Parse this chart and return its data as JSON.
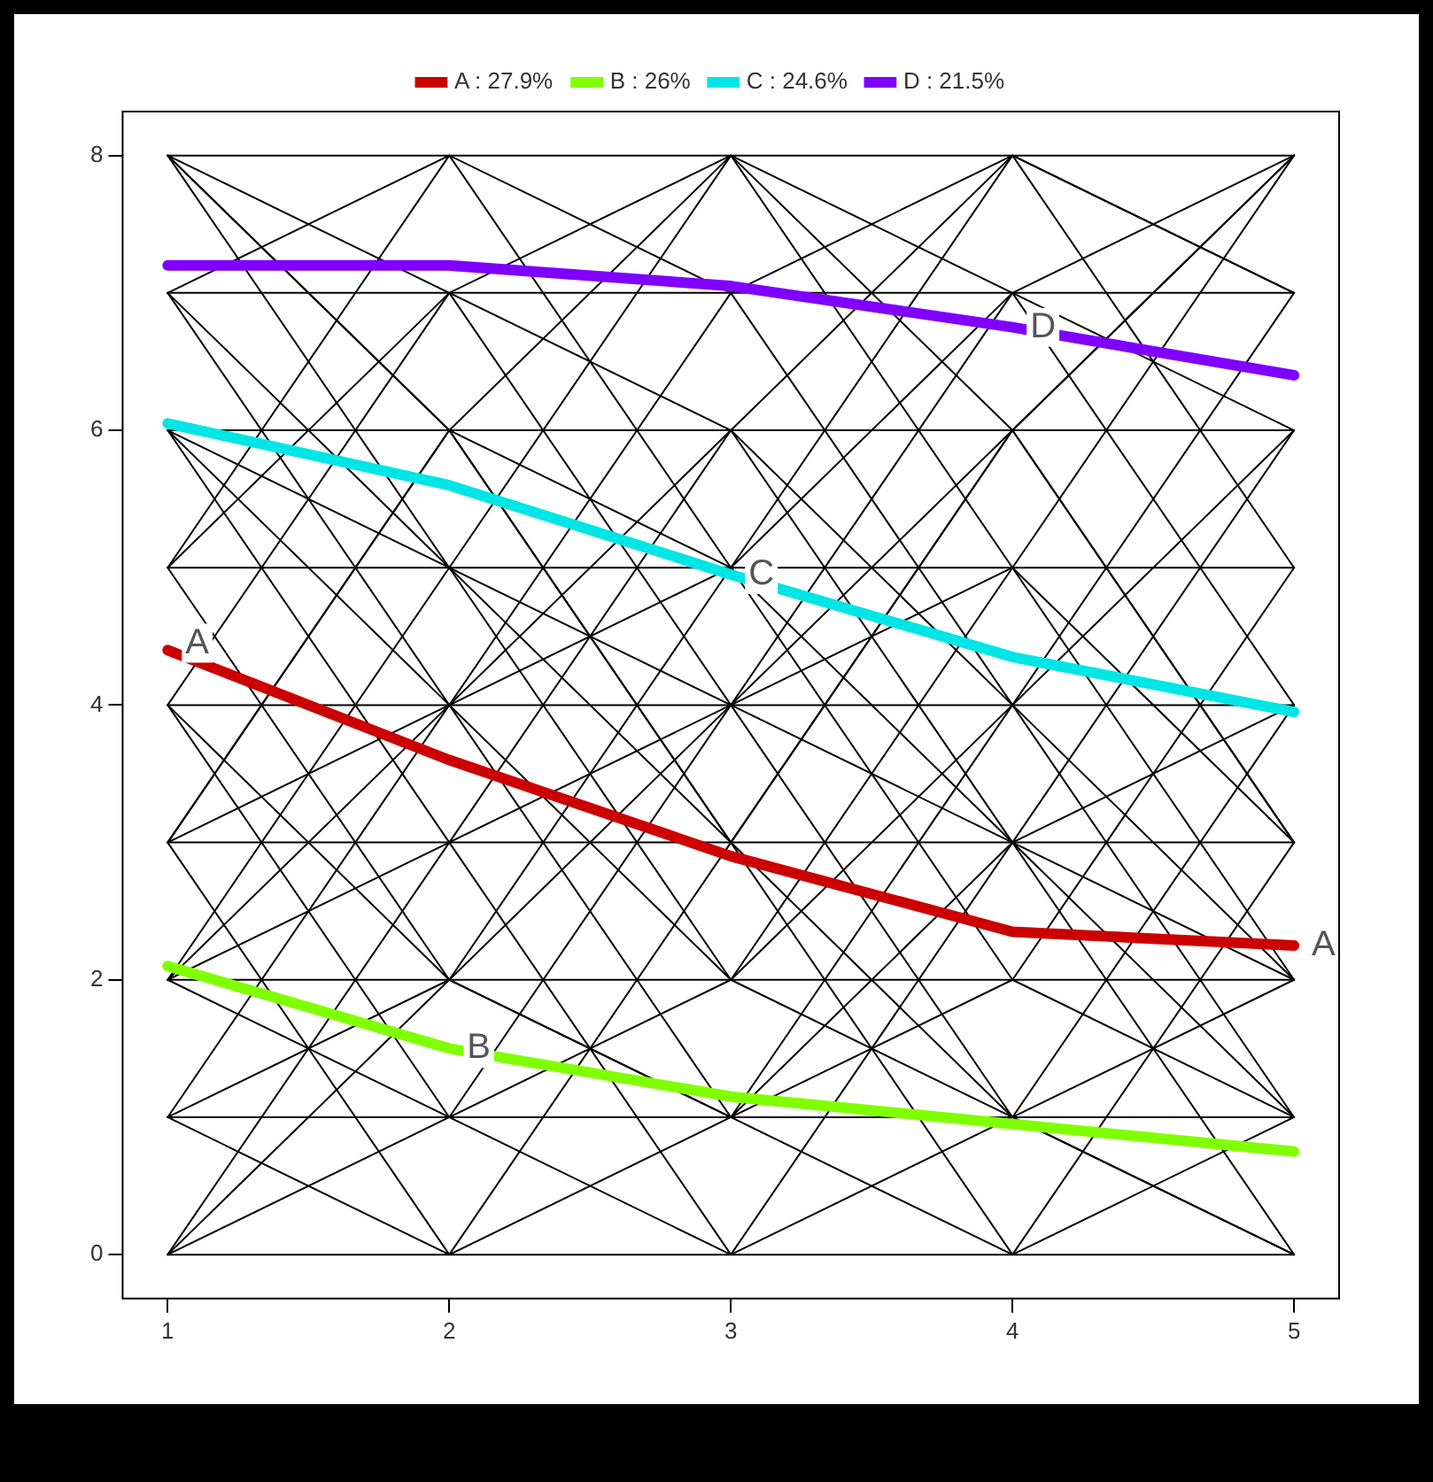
{
  "chart_data": {
    "type": "line",
    "x": [
      1,
      2,
      3,
      4,
      5
    ],
    "xlim": [
      0.84,
      5.16
    ],
    "xticks": [
      1,
      2,
      3,
      4,
      5
    ],
    "ylim": [
      -0.32,
      8.32
    ],
    "yticks": [
      0,
      2,
      4,
      6,
      8
    ],
    "grid": false,
    "legend": "top",
    "marker": "none",
    "line_style": "solid",
    "series": [
      {
        "color": "#000000",
        "values": [
          0,
          0,
          0,
          0,
          0
        ]
      },
      {
        "color": "#000000",
        "values": [
          1,
          1,
          1,
          1,
          1
        ]
      },
      {
        "color": "#000000",
        "values": [
          2,
          2,
          2,
          2,
          2
        ]
      },
      {
        "color": "#000000",
        "values": [
          3,
          3,
          3,
          3,
          3
        ]
      },
      {
        "color": "#000000",
        "values": [
          4,
          4,
          4,
          4,
          4
        ]
      },
      {
        "color": "#000000",
        "values": [
          5,
          5,
          5,
          5,
          5
        ]
      },
      {
        "color": "#000000",
        "values": [
          6,
          6,
          6,
          6,
          6
        ]
      },
      {
        "color": "#000000",
        "values": [
          7,
          7,
          7,
          7,
          7
        ]
      },
      {
        "color": "#000000",
        "values": [
          8,
          8,
          8,
          8,
          8
        ]
      },
      {
        "color": "#000000",
        "values": [
          8,
          7,
          8,
          7,
          8
        ]
      },
      {
        "color": "#000000",
        "values": [
          7,
          8,
          7,
          8,
          7
        ]
      },
      {
        "color": "#000000",
        "values": [
          8,
          5,
          8,
          5,
          8
        ]
      },
      {
        "color": "#000000",
        "values": [
          5,
          8,
          5,
          8,
          5
        ]
      },
      {
        "color": "#000000",
        "values": [
          8,
          6,
          3,
          6,
          8
        ]
      },
      {
        "color": "#000000",
        "values": [
          3,
          6,
          8,
          6,
          3
        ]
      },
      {
        "color": "#000000",
        "values": [
          7,
          4,
          7,
          4,
          7
        ]
      },
      {
        "color": "#000000",
        "values": [
          4,
          7,
          4,
          7,
          4
        ]
      },
      {
        "color": "#000000",
        "values": [
          6,
          3,
          6,
          3,
          6
        ]
      },
      {
        "color": "#000000",
        "values": [
          3,
          6,
          3,
          6,
          3
        ]
      },
      {
        "color": "#000000",
        "values": [
          5,
          2,
          5,
          2,
          5
        ]
      },
      {
        "color": "#000000",
        "values": [
          2,
          5,
          2,
          5,
          2
        ]
      },
      {
        "color": "#000000",
        "values": [
          4,
          1,
          4,
          1,
          4
        ]
      },
      {
        "color": "#000000",
        "values": [
          1,
          4,
          1,
          4,
          1
        ]
      },
      {
        "color": "#000000",
        "values": [
          0,
          3,
          0,
          3,
          0
        ]
      },
      {
        "color": "#000000",
        "values": [
          3,
          0,
          3,
          0,
          3
        ]
      },
      {
        "color": "#000000",
        "values": [
          1,
          2,
          1,
          2,
          1
        ]
      },
      {
        "color": "#000000",
        "values": [
          2,
          1,
          2,
          1,
          2
        ]
      },
      {
        "color": "#000000",
        "values": [
          0,
          1,
          0,
          1,
          0
        ]
      },
      {
        "color": "#000000",
        "values": [
          1,
          0,
          1,
          0,
          1
        ]
      },
      {
        "color": "#000000",
        "values": [
          6,
          4,
          2,
          4,
          6
        ]
      },
      {
        "color": "#000000",
        "values": [
          2,
          4,
          6,
          4,
          2
        ]
      },
      {
        "color": "#000000",
        "values": [
          8,
          6,
          5,
          3,
          1
        ]
      },
      {
        "color": "#000000",
        "values": [
          0,
          2,
          4,
          6,
          8
        ]
      },
      {
        "color": "#000000",
        "values": [
          7,
          5,
          3,
          1,
          0
        ]
      },
      {
        "color": "#000000",
        "values": [
          5,
          7,
          6,
          8,
          7
        ]
      },
      {
        "color": "#000000",
        "values": [
          6,
          5,
          4,
          3,
          2
        ]
      },
      {
        "color": "#000000",
        "values": [
          3,
          4,
          5,
          7,
          6
        ]
      },
      {
        "color": "#000000",
        "values": [
          4,
          2,
          1,
          3,
          4
        ]
      },
      {
        "color": "#000000",
        "values": [
          2,
          3,
          4,
          5,
          3
        ]
      },
      {
        "name": "A : 27.9%",
        "color": "#cc0000",
        "values": [
          4.4,
          3.6,
          2.9,
          2.35,
          2.25
        ]
      },
      {
        "name": "B : 26%",
        "color": "#80ff00",
        "values": [
          2.1,
          1.5,
          1.15,
          0.95,
          0.75
        ]
      },
      {
        "name": "C : 24.6%",
        "color": "#00e5e5",
        "values": [
          6.05,
          5.6,
          4.95,
          4.35,
          3.95
        ]
      },
      {
        "name": "D : 21.5%",
        "color": "#7f00ff",
        "values": [
          7.2,
          7.2,
          7.05,
          6.75,
          6.4
        ]
      }
    ],
    "annotations": [
      {
        "text": "A",
        "x": 1,
        "y": 4.45
      },
      {
        "text": "A",
        "x": 5,
        "y": 2.25
      },
      {
        "text": "B",
        "x": 2,
        "y": 1.5
      },
      {
        "text": "C",
        "x": 3,
        "y": 4.95
      },
      {
        "text": "D",
        "x": 4,
        "y": 6.75
      }
    ]
  }
}
